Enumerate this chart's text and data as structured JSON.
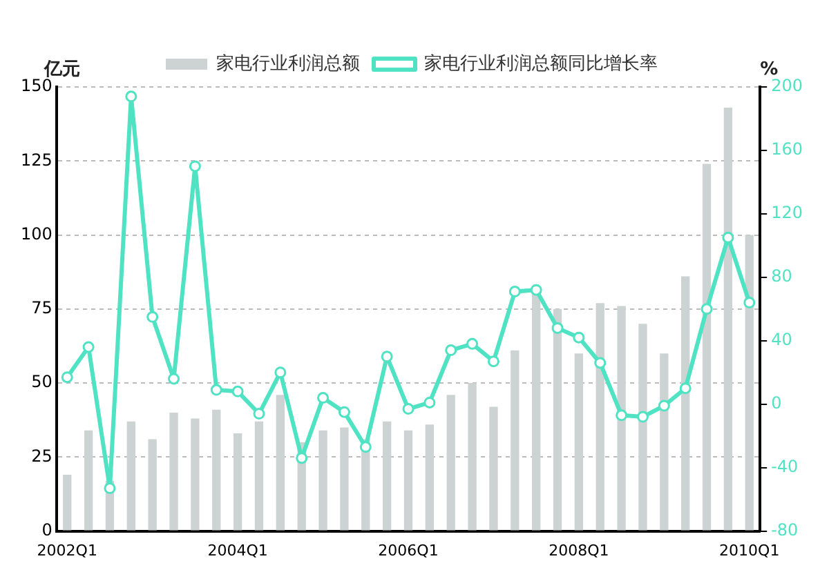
{
  "chart_data": {
    "type": "bar",
    "ylabel": "亿元",
    "y2label": "%",
    "categories": [
      "2002Q1",
      null,
      null,
      null,
      null,
      null,
      null,
      null,
      "2004Q1",
      null,
      null,
      null,
      null,
      null,
      null,
      null,
      "2006Q1",
      null,
      null,
      null,
      null,
      null,
      null,
      null,
      "2008Q1",
      null,
      null,
      null,
      null,
      null,
      null,
      null,
      "2010Q1"
    ],
    "series": [
      {
        "name": "家电行业利润总额",
        "color": "#cdd3d3",
        "values": [
          19,
          34,
          17,
          37,
          31,
          40,
          38,
          41,
          33,
          37,
          46,
          30,
          34,
          35,
          31,
          37,
          34,
          36,
          46,
          50,
          42,
          61,
          80,
          75,
          60,
          77,
          76,
          70,
          60,
          86,
          124,
          143,
          100
        ]
      },
      {
        "name": "家电行业利润总额同比增长率",
        "type": "line",
        "axis": "y2",
        "color": "#4fe3c3",
        "marker": "circle",
        "values": [
          17,
          36,
          -53,
          194,
          55,
          16,
          150,
          9,
          8,
          -6,
          20,
          -34,
          4,
          -5,
          -27,
          30,
          -3,
          1,
          34,
          38,
          27,
          71,
          72,
          48,
          42,
          26,
          -7,
          -8,
          -1,
          10,
          60,
          105,
          64
        ]
      }
    ],
    "ylim": [
      0,
      150
    ],
    "yticks": [
      0,
      25,
      50,
      75,
      100,
      125,
      150
    ],
    "y2lim": [
      -80,
      200
    ],
    "y2ticks": [
      -80,
      -40,
      0,
      40,
      80,
      120,
      160,
      200
    ],
    "grid": "y",
    "legend": "top"
  }
}
